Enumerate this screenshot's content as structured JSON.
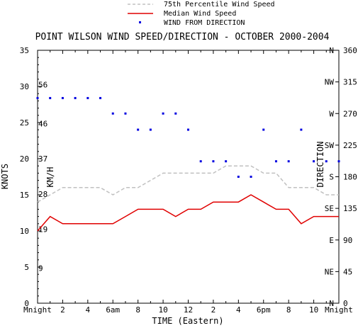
{
  "chart_data": {
    "type": "line",
    "title": "POINT WILSON WIND SPEED/DIRECTION - OCTOBER 2000-2004",
    "xlabel": "TIME (Eastern)",
    "ylabel_left": "KNOTS",
    "ylabel_left_inner": "KM/H",
    "ylabel_right": "DIRECTION",
    "x_tick_labels": [
      "Mnight",
      "2",
      "4",
      "6am",
      "8",
      "10",
      "12",
      "2",
      "4",
      "6pm",
      "8",
      "10",
      "Mnight"
    ],
    "x_tick_hours": [
      0,
      2,
      4,
      6,
      8,
      10,
      12,
      14,
      16,
      18,
      20,
      22,
      24
    ],
    "xlim": [
      0,
      24
    ],
    "knots_ticks": [
      "0",
      "5",
      "10",
      "15",
      "20",
      "25",
      "30",
      "35"
    ],
    "knots_tick_values": [
      0,
      5,
      10,
      15,
      20,
      25,
      30,
      35
    ],
    "kmh_ticks": [
      "9",
      "19",
      "28",
      "37",
      "46",
      "56"
    ],
    "kmh_tick_values": [
      9,
      19,
      28,
      37,
      46,
      56
    ],
    "direction_ticks": [
      "0",
      "45",
      "90",
      "135",
      "180",
      "225",
      "270",
      "315",
      "360"
    ],
    "direction_compass": [
      "N",
      "NE",
      "E",
      "SE",
      "S",
      "SW",
      "W",
      "NW",
      "N"
    ],
    "direction_tick_values": [
      0,
      45,
      90,
      135,
      180,
      225,
      270,
      315,
      360
    ],
    "ylim_knots": [
      0,
      35
    ],
    "ylim_direction": [
      0,
      360
    ],
    "grid": false,
    "legend_position": "top-center",
    "series": [
      {
        "name": "75th Percentile Wind Speed",
        "axis": "knots",
        "style": "dashed",
        "color": "#c0c0c0",
        "x": [
          0,
          1,
          2,
          3,
          4,
          5,
          6,
          7,
          8,
          9,
          10,
          11,
          12,
          13,
          14,
          15,
          16,
          17,
          18,
          19,
          20,
          21,
          22,
          23,
          24
        ],
        "values": [
          14,
          15,
          16,
          16,
          16,
          16,
          15,
          16,
          16,
          17,
          18,
          18,
          18,
          18,
          18,
          19,
          19,
          19,
          18,
          18,
          16,
          16,
          16,
          15,
          15
        ]
      },
      {
        "name": "Median Wind Speed",
        "axis": "knots",
        "style": "solid",
        "color": "#e00000",
        "x": [
          0,
          1,
          2,
          3,
          4,
          5,
          6,
          7,
          8,
          9,
          10,
          11,
          12,
          13,
          14,
          15,
          16,
          17,
          18,
          19,
          20,
          21,
          22,
          23,
          24
        ],
        "values": [
          10,
          12,
          11,
          11,
          11,
          11,
          11,
          12,
          13,
          13,
          13,
          12,
          13,
          13,
          14,
          14,
          14,
          15,
          14,
          13,
          13,
          11,
          12,
          12,
          12
        ]
      },
      {
        "name": "WIND FROM DIRECTION",
        "axis": "direction",
        "style": "markers",
        "color": "#0000e0",
        "x": [
          0,
          1,
          2,
          3,
          4,
          5,
          6,
          7,
          8,
          9,
          10,
          11,
          12,
          13,
          14,
          15,
          16,
          17,
          18,
          19,
          20,
          21,
          22,
          23,
          24
        ],
        "values": [
          292,
          292,
          292,
          292,
          292,
          292,
          270,
          270,
          247,
          247,
          270,
          270,
          247,
          202,
          202,
          202,
          180,
          180,
          247,
          202,
          202,
          247,
          202,
          202,
          202
        ]
      }
    ]
  }
}
